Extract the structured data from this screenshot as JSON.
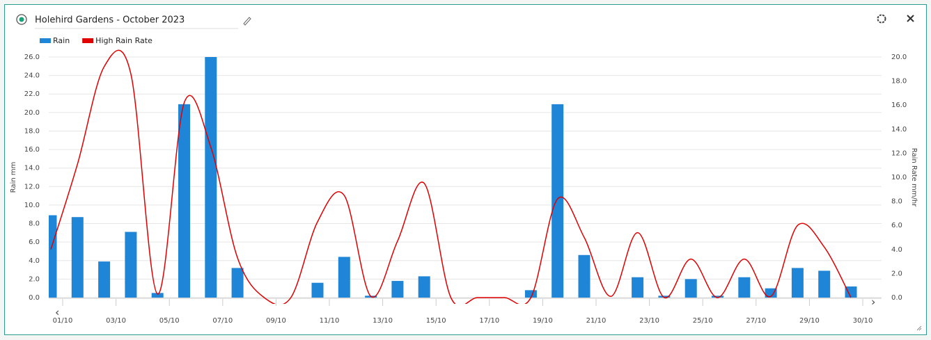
{
  "header": {
    "title": "Holehird Gardens - October 2023"
  },
  "chart_data": {
    "type": "bar-line",
    "categories": [
      "01/10",
      null,
      "03/10",
      null,
      "05/10",
      null,
      "07/10",
      null,
      "09/10",
      null,
      "11/10",
      null,
      "13/10",
      null,
      "15/10",
      null,
      "17/10",
      null,
      "19/10",
      null,
      "21/10",
      null,
      "23/10",
      null,
      "25/10",
      null,
      "27/10",
      null,
      "29/10",
      null,
      "30/10"
    ],
    "series": [
      {
        "name": "Rain",
        "type": "bar",
        "color": "#1f85d6",
        "axis": "y",
        "values": [
          8.9,
          8.7,
          3.9,
          7.1,
          0.5,
          20.9,
          26.0,
          3.2,
          0,
          0,
          1.6,
          4.4,
          0.2,
          1.8,
          2.3,
          0,
          0,
          0,
          0.8,
          20.9,
          4.6,
          0,
          2.2,
          0.2,
          2.0,
          0.2,
          2.2,
          1.0,
          3.2,
          2.9,
          1.2
        ]
      },
      {
        "name": "High Rain Rate",
        "type": "line",
        "color": "#e00000",
        "axis": "y2",
        "values": [
          4.0,
          11.1,
          19.2,
          18.6,
          0.3,
          16.2,
          12.5,
          3.3,
          0,
          0,
          6.3,
          8.5,
          0.1,
          4.7,
          9.5,
          0,
          0,
          0,
          0,
          8.2,
          5.0,
          0.1,
          5.4,
          0,
          3.2,
          0,
          3.2,
          0.1,
          6.0,
          4.2,
          0
        ]
      }
    ],
    "ylabel": "Rain mm",
    "y2label": "Rain Rate mm/hr",
    "ylim": [
      0,
      26
    ],
    "yticks": [
      {
        "value": 0,
        "label": "0.0"
      },
      {
        "value": 2,
        "label": "2.0"
      },
      {
        "value": 4,
        "label": "4.0"
      },
      {
        "value": 6,
        "label": "6.0"
      },
      {
        "value": 8,
        "label": "8.0"
      },
      {
        "value": 10,
        "label": "10.0"
      },
      {
        "value": 12,
        "label": "12.0"
      },
      {
        "value": 14,
        "label": "14.0"
      },
      {
        "value": 16,
        "label": "16.0"
      },
      {
        "value": 18,
        "label": "18.0"
      },
      {
        "value": 20,
        "label": "20.0"
      },
      {
        "value": 22,
        "label": "22.0"
      },
      {
        "value": 24,
        "label": "24.0"
      },
      {
        "value": 26,
        "label": "26.0"
      }
    ],
    "y2lim": [
      0,
      20
    ],
    "y2ticks": [
      {
        "value": 0,
        "label": "0.0"
      },
      {
        "value": 2,
        "label": "2.0"
      },
      {
        "value": 4,
        "label": "4.0"
      },
      {
        "value": 6,
        "label": "6.0"
      },
      {
        "value": 8,
        "label": "8.0"
      },
      {
        "value": 10,
        "label": "10.0"
      },
      {
        "value": 12,
        "label": "12.0"
      },
      {
        "value": 14,
        "label": "14.0"
      },
      {
        "value": 16,
        "label": "16.0"
      },
      {
        "value": 18,
        "label": "18.0"
      },
      {
        "value": 20,
        "label": "20.0"
      }
    ],
    "grid": true,
    "legend": "top-left"
  }
}
